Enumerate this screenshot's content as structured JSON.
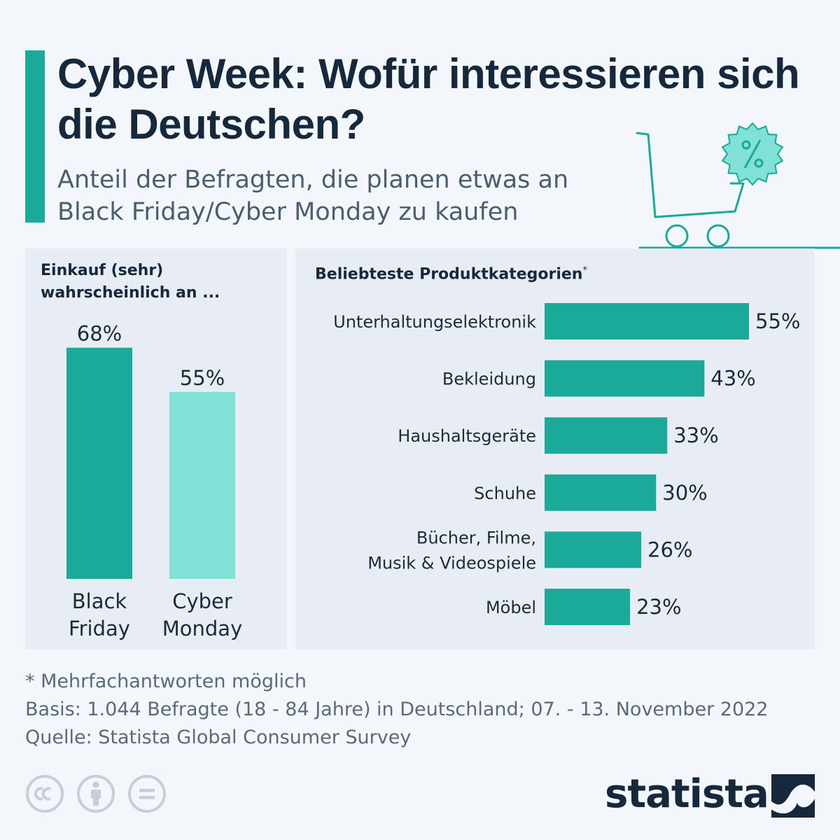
{
  "header": {
    "title": "Cyber Week: Wofür interessieren sich die Deutschen?",
    "subtitle": "Anteil der Befragten, die planen etwas an Black Friday/Cyber Monday zu kaufen",
    "illustration": "shopping-cart-percent-icon"
  },
  "colors": {
    "accent": "#1ba99a",
    "light_accent": "#81e1d6",
    "title": "#16283c",
    "panel_bg": "#e8edf5",
    "page_bg": "#f3f6fa"
  },
  "left_panel": {
    "title": "Einkauf (sehr) wahrscheinlich an ..."
  },
  "right_panel": {
    "title": "Beliebteste Produktkategorien",
    "title_marker": "*"
  },
  "chart_data": [
    {
      "type": "bar",
      "orientation": "vertical",
      "title": "Einkauf (sehr) wahrscheinlich an ...",
      "categories": [
        "Black Friday",
        "Cyber Monday"
      ],
      "values": [
        68,
        55
      ],
      "value_labels": [
        "68%",
        "55%"
      ],
      "colors": [
        "#1ba99a",
        "#81e1d6"
      ],
      "unit": "%",
      "ylim": [
        0,
        70
      ],
      "grid": false
    },
    {
      "type": "bar",
      "orientation": "horizontal",
      "title": "Beliebteste Produktkategorien*",
      "categories": [
        "Unterhaltungselektronik",
        "Bekleidung",
        "Haushaltsgeräte",
        "Schuhe",
        "Bücher, Filme, Musik & Videospiele",
        "Möbel"
      ],
      "category_lines": [
        [
          "Unterhaltungselektronik"
        ],
        [
          "Bekleidung"
        ],
        [
          "Haushaltsgeräte"
        ],
        [
          "Schuhe"
        ],
        [
          "Bücher, Filme,",
          "Musik & Videospiele"
        ],
        [
          "Möbel"
        ]
      ],
      "values": [
        55,
        43,
        33,
        30,
        26,
        23
      ],
      "value_labels": [
        "55%",
        "43%",
        "33%",
        "30%",
        "26%",
        "23%"
      ],
      "color": "#1ba99a",
      "unit": "%",
      "xlim": [
        0,
        55
      ],
      "grid": false
    }
  ],
  "footnotes": {
    "note": "* Mehrfachantworten möglich",
    "basis": "Basis: 1.044 Befragte (18 - 84 Jahre) in Deutschland; 07. - 13. November 2022",
    "source": "Quelle: Statista Global Consumer Survey"
  },
  "footer": {
    "license_icons": [
      "cc-icon",
      "by-attribution-icon",
      "no-derivatives-icon"
    ],
    "brand": "statista",
    "brand_logo": "statista-logo-icon"
  }
}
